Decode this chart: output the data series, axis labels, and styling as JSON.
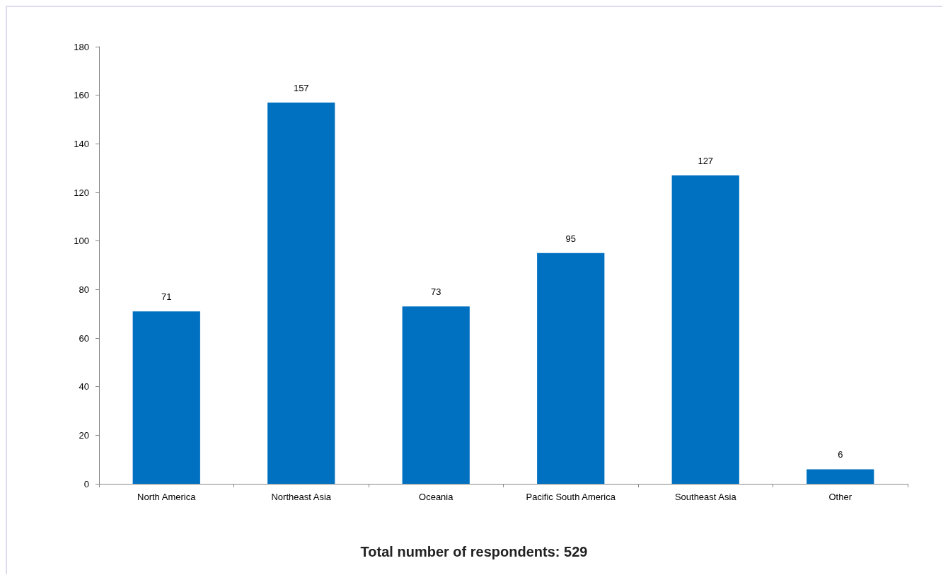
{
  "chart_data": {
    "type": "bar",
    "categories": [
      "North America",
      "Northeast Asia",
      "Oceania",
      "Pacific South America",
      "Southeast Asia",
      "Other"
    ],
    "values": [
      71,
      157,
      73,
      95,
      127,
      6
    ],
    "color": "#0070c0",
    "ylim": [
      0,
      180
    ],
    "yticks": [
      0,
      20,
      40,
      60,
      80,
      100,
      120,
      140,
      160,
      180
    ],
    "grid": false,
    "data_labels": true,
    "annotations": [
      "Total number of respondents: 529"
    ]
  }
}
